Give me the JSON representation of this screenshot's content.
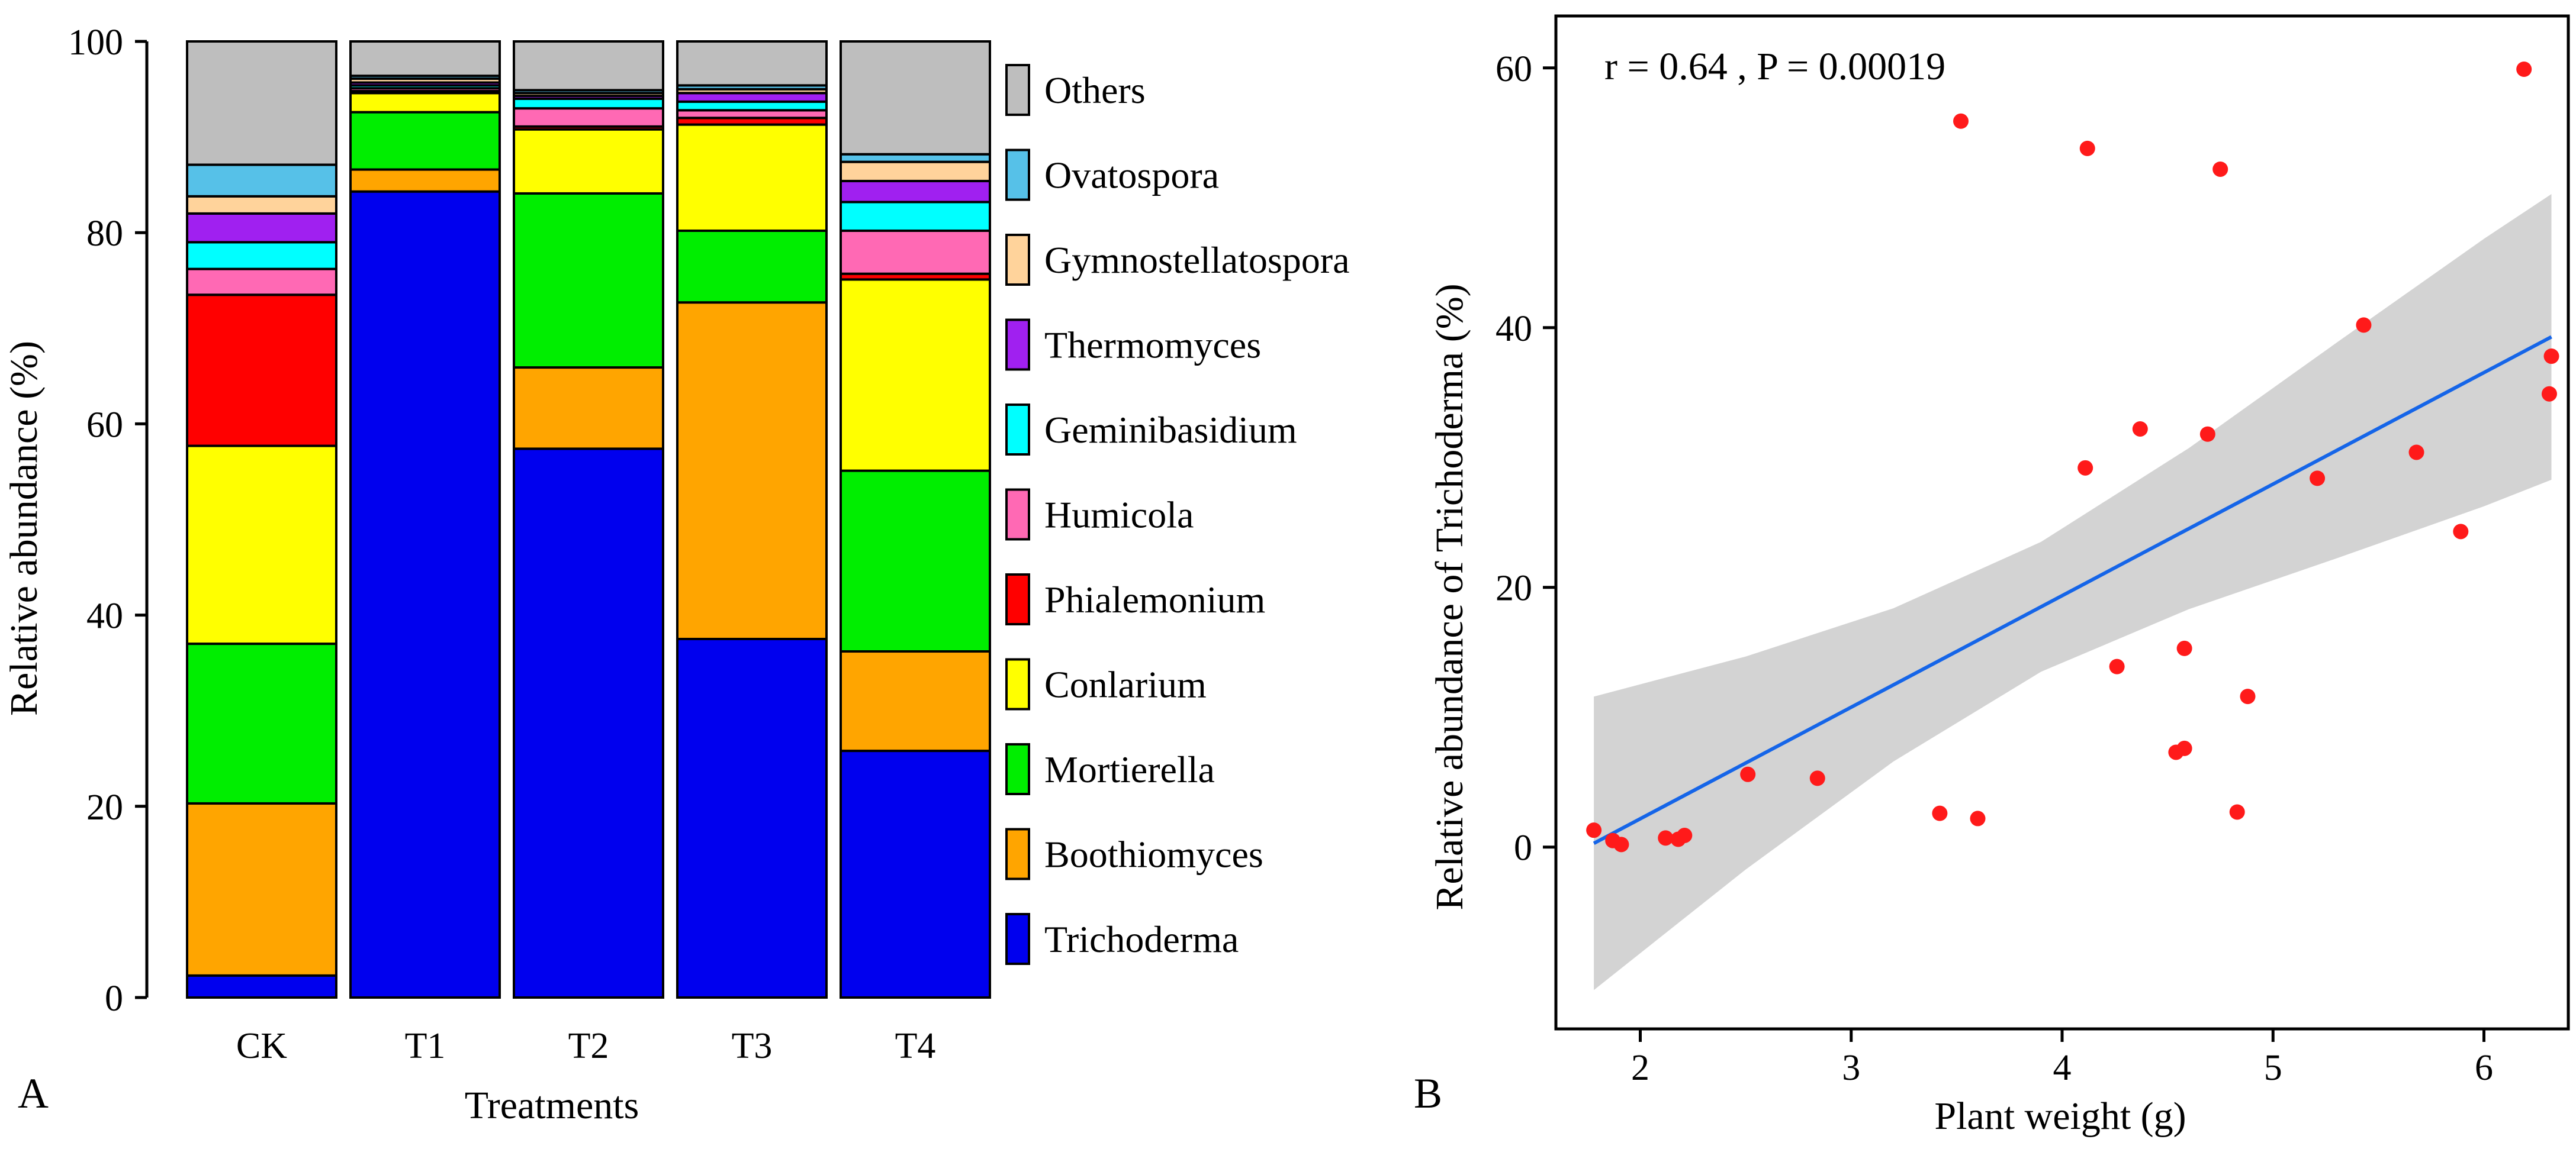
{
  "chart_data": [
    {
      "type": "stacked-bar",
      "panel_label": "A",
      "xlabel": "Treatments",
      "ylabel": "Relative abundance  (%)",
      "ylim": [
        0,
        100
      ],
      "yticks": [
        0,
        20,
        40,
        60,
        80,
        100
      ],
      "categories": [
        "CK",
        "T1",
        "T2",
        "T3",
        "T4"
      ],
      "legend_position": "right",
      "series": [
        {
          "name": "Trichoderma",
          "color": "#0000ee",
          "values": [
            2.3,
            84.3,
            57.4,
            37.5,
            25.8
          ]
        },
        {
          "name": "Boothiomyces",
          "color": "#ffa500",
          "values": [
            18.0,
            2.3,
            8.5,
            35.2,
            10.4
          ]
        },
        {
          "name": "Mortierella",
          "color": "#00ee00",
          "values": [
            16.7,
            6.0,
            18.2,
            7.5,
            18.9
          ]
        },
        {
          "name": "Conlarium",
          "color": "#ffff00",
          "values": [
            20.7,
            2.0,
            6.7,
            11.1,
            20.0
          ]
        },
        {
          "name": "Phialemonium",
          "color": "#ff0000",
          "values": [
            15.8,
            0.2,
            0.3,
            0.7,
            0.6
          ]
        },
        {
          "name": "Humicola",
          "color": "#ff69b4",
          "values": [
            2.7,
            0.3,
            1.9,
            0.8,
            4.5
          ]
        },
        {
          "name": "Geminibasidium",
          "color": "#00ffff",
          "values": [
            2.8,
            0.3,
            1.0,
            0.9,
            3.0
          ]
        },
        {
          "name": "Thermomyces",
          "color": "#a020f0",
          "values": [
            3.0,
            0.3,
            0.3,
            0.9,
            2.2
          ]
        },
        {
          "name": "Gymnostellatospora",
          "color": "#ffd39b",
          "values": [
            1.8,
            0.4,
            0.3,
            0.4,
            2.0
          ]
        },
        {
          "name": "Ovatospora",
          "color": "#56c1e8",
          "values": [
            3.3,
            0.3,
            0.3,
            0.4,
            0.8
          ]
        },
        {
          "name": "Others",
          "color": "#bebebe",
          "values": [
            12.9,
            3.6,
            5.1,
            4.6,
            11.8
          ]
        }
      ]
    },
    {
      "type": "scatter",
      "panel_label": "B",
      "xlabel": "Plant weight (g)",
      "ylabel": "Relative abundance of Trichoderma (%)",
      "annotation": "r = 0.64 , P = 0.00019",
      "xlim": [
        1.6,
        6.4
      ],
      "ylim": [
        -14,
        64
      ],
      "xticks": [
        2,
        3,
        4,
        5,
        6
      ],
      "yticks": [
        0,
        20,
        40,
        60
      ],
      "point_color": "#ff1a1a",
      "fit_color": "#1565e8",
      "band_color": "#d3d3d3",
      "fit": {
        "slope": 8.59,
        "intercept": -15.0
      },
      "band_halfwidth": {
        "at_x": [
          1.78,
          2.5,
          3.2,
          3.9,
          4.6,
          5.3,
          6.0,
          6.32
        ],
        "half": [
          11.3,
          8.2,
          5.9,
          5.0,
          6.2,
          8.3,
          10.3,
          11.0
        ]
      },
      "points": [
        {
          "x": 1.78,
          "y": 1.3
        },
        {
          "x": 1.87,
          "y": 0.5
        },
        {
          "x": 1.91,
          "y": 0.2
        },
        {
          "x": 2.12,
          "y": 0.7
        },
        {
          "x": 2.18,
          "y": 0.6
        },
        {
          "x": 2.21,
          "y": 0.9
        },
        {
          "x": 2.51,
          "y": 5.6
        },
        {
          "x": 2.84,
          "y": 5.3
        },
        {
          "x": 3.42,
          "y": 2.6
        },
        {
          "x": 3.6,
          "y": 2.2
        },
        {
          "x": 3.52,
          "y": 55.9
        },
        {
          "x": 4.12,
          "y": 53.8
        },
        {
          "x": 4.75,
          "y": 52.2
        },
        {
          "x": 4.11,
          "y": 29.2
        },
        {
          "x": 4.37,
          "y": 32.2
        },
        {
          "x": 4.69,
          "y": 31.8
        },
        {
          "x": 4.26,
          "y": 13.9
        },
        {
          "x": 4.54,
          "y": 7.3
        },
        {
          "x": 4.58,
          "y": 7.6
        },
        {
          "x": 4.58,
          "y": 15.3
        },
        {
          "x": 4.83,
          "y": 2.7
        },
        {
          "x": 4.88,
          "y": 11.6
        },
        {
          "x": 5.21,
          "y": 28.4
        },
        {
          "x": 5.43,
          "y": 40.2
        },
        {
          "x": 5.68,
          "y": 30.4
        },
        {
          "x": 5.89,
          "y": 24.3
        },
        {
          "x": 6.19,
          "y": 59.9
        },
        {
          "x": 6.32,
          "y": 37.8
        },
        {
          "x": 6.31,
          "y": 34.9
        }
      ]
    }
  ]
}
